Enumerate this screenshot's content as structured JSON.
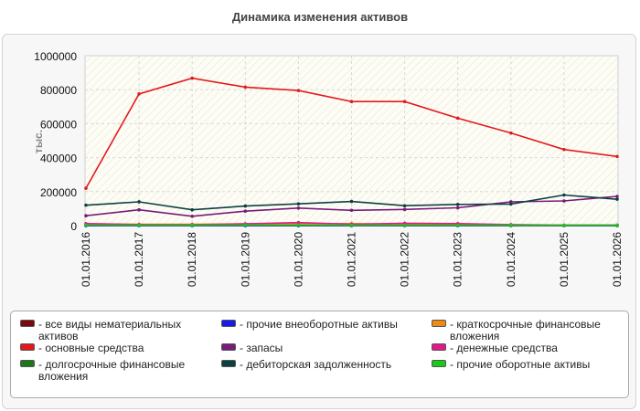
{
  "title": "Динамика изменения активов",
  "chart_data": {
    "type": "line",
    "title": "Динамика изменения активов",
    "xlabel": "",
    "ylabel": "тыс.",
    "ylim": [
      0,
      1000000
    ],
    "yticks": [
      "0",
      "200000",
      "400000",
      "600000",
      "800000",
      "1000000"
    ],
    "categories": [
      "01.01.2016",
      "01.01.2017",
      "01.01.2018",
      "01.01.2019",
      "01.01.2020",
      "01.01.2021",
      "01.01.2022",
      "01.01.2023",
      "01.01.2024",
      "01.01.2025",
      "01.01.2026"
    ],
    "grid": true,
    "legend_position": "bottom",
    "series": [
      {
        "name": "все виды нематериальных активов",
        "color": "#7a0a0a",
        "values": [
          0,
          0,
          0,
          0,
          0,
          0,
          0,
          0,
          0,
          0,
          0
        ]
      },
      {
        "name": "основные средства",
        "color": "#e31a1c",
        "values": [
          220000,
          775000,
          868000,
          815000,
          795000,
          730000,
          730000,
          632000,
          545000,
          448000,
          407000
        ]
      },
      {
        "name": "долгосрочные финансовые вложения",
        "color": "#1a7a1a",
        "values": [
          0,
          0,
          0,
          0,
          0,
          0,
          0,
          0,
          0,
          0,
          0
        ]
      },
      {
        "name": "прочие внеоборотные активы",
        "color": "#1a1ae6",
        "values": [
          0,
          0,
          0,
          0,
          0,
          0,
          0,
          0,
          0,
          0,
          0
        ]
      },
      {
        "name": "запасы",
        "color": "#7a1a7a",
        "values": [
          58000,
          93000,
          55000,
          85000,
          103000,
          90000,
          95000,
          105000,
          140000,
          145000,
          172000
        ]
      },
      {
        "name": "дебиторская задолженность",
        "color": "#0d4040",
        "values": [
          120000,
          140000,
          93000,
          115000,
          128000,
          142000,
          117000,
          125000,
          127000,
          180000,
          155000
        ]
      },
      {
        "name": "краткосрочные финансовые вложения",
        "color": "#f08a10",
        "values": [
          10000,
          8000,
          8000,
          10000,
          10000,
          12000,
          8000,
          5000,
          3000,
          2000,
          2000
        ]
      },
      {
        "name": "денежные средства",
        "color": "#e01a8a",
        "values": [
          12000,
          6000,
          5000,
          10000,
          18000,
          8000,
          14000,
          12000,
          6000,
          3000,
          3000
        ]
      },
      {
        "name": "прочие оборотные активы",
        "color": "#1ac81a",
        "values": [
          3000,
          2000,
          2000,
          3000,
          3000,
          2000,
          2000,
          2000,
          2000,
          2000,
          2000
        ]
      }
    ]
  },
  "legend": [
    {
      "label": "- все виды нематериальных активов",
      "color": "#7a0a0a"
    },
    {
      "label": "- основные средства",
      "color": "#e31a1c"
    },
    {
      "label": "- долгосрочные финансовые вложения",
      "color": "#1a7a1a"
    },
    {
      "label": "- прочие внеоборотные активы",
      "color": "#1a1ae6"
    },
    {
      "label": "- запасы",
      "color": "#7a1a7a"
    },
    {
      "label": "- дебиторская задолженность",
      "color": "#0d4040"
    },
    {
      "label": "- краткосрочные финансовые вложения",
      "color": "#f08a10"
    },
    {
      "label": "- денежные средства",
      "color": "#e01a8a"
    },
    {
      "label": "- прочие оборотные активы",
      "color": "#1ac81a"
    }
  ]
}
